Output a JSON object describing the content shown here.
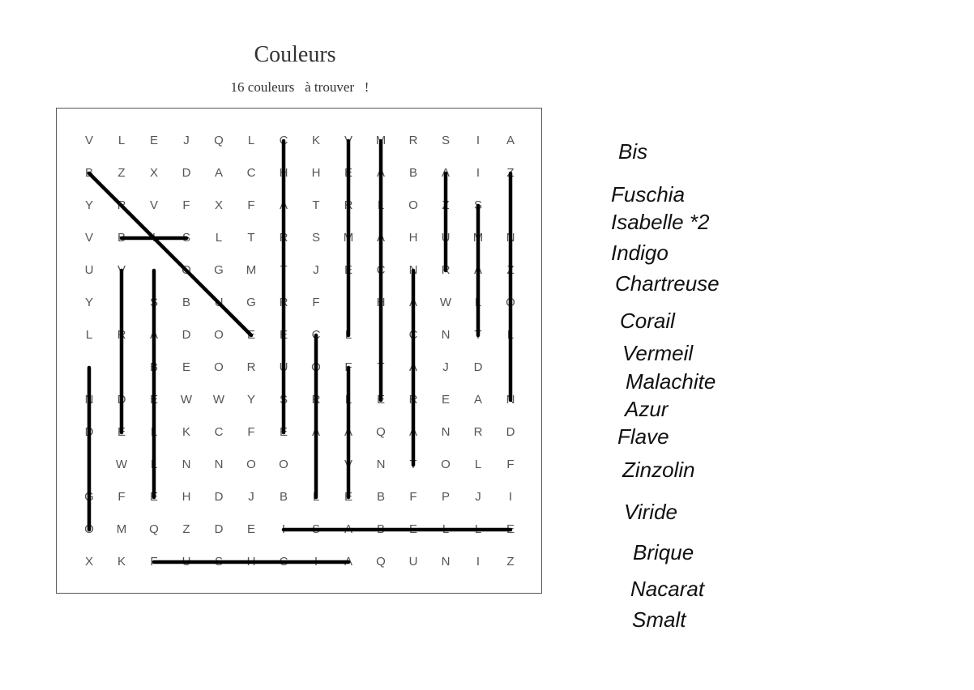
{
  "title": "Couleurs",
  "subtitle": "16 couleurs   à trouver   !",
  "grid": [
    [
      "V",
      "L",
      "E",
      "J",
      "Q",
      "L",
      "C",
      "K",
      "V",
      "M",
      "R",
      "S",
      "I",
      "A"
    ],
    [
      "B",
      "Z",
      "X",
      "D",
      "A",
      "C",
      "H",
      "H",
      "E",
      "A",
      "B",
      "A",
      "I",
      "Z"
    ],
    [
      "Y",
      "R",
      "V",
      "F",
      "X",
      "F",
      "A",
      "T",
      "R",
      "L",
      "O",
      "Z",
      "S",
      ""
    ],
    [
      "V",
      "B",
      "I",
      "S",
      "L",
      "T",
      "R",
      "S",
      "M",
      "A",
      "H",
      "U",
      "M",
      "N"
    ],
    [
      "U",
      "V",
      "",
      "O",
      "G",
      "M",
      "T",
      "J",
      "E",
      "C",
      "N",
      "R",
      "A",
      "Z"
    ],
    [
      "Y",
      "",
      "S",
      "B",
      "U",
      "G",
      "R",
      "F",
      "",
      "H",
      "A",
      "W",
      "L",
      "O"
    ],
    [
      "L",
      "R",
      "A",
      "D",
      "O",
      "E",
      "E",
      "C",
      "L",
      "",
      "C",
      "N",
      "T",
      "L"
    ],
    [
      "",
      "",
      "B",
      "E",
      "O",
      "R",
      "U",
      "O",
      "F",
      "T",
      "A",
      "J",
      "D",
      ""
    ],
    [
      "N",
      "D",
      "E",
      "W",
      "W",
      "Y",
      "S",
      "R",
      "L",
      "E",
      "R",
      "E",
      "A",
      "N"
    ],
    [
      "D",
      "E",
      "L",
      "K",
      "C",
      "F",
      "E",
      "A",
      "A",
      "Q",
      "A",
      "N",
      "R",
      "D"
    ],
    [
      "",
      "W",
      "L",
      "N",
      "N",
      "O",
      "O",
      "I",
      "V",
      "N",
      "T",
      "O",
      "L",
      "F"
    ],
    [
      "G",
      "F",
      "E",
      "H",
      "D",
      "J",
      "B",
      "L",
      "E",
      "B",
      "F",
      "P",
      "J",
      "I"
    ],
    [
      "O",
      "M",
      "Q",
      "Z",
      "D",
      "E",
      "I",
      "S",
      "A",
      "B",
      "E",
      "L",
      "L",
      "E"
    ],
    [
      "X",
      "K",
      "F",
      "U",
      "S",
      "H",
      "C",
      "I",
      "A",
      "Q",
      "U",
      "N",
      "I",
      "Z"
    ]
  ],
  "found_words": [
    {
      "word": "Isabelle",
      "from": [
        12,
        6
      ],
      "to": [
        12,
        13
      ]
    },
    {
      "word": "Fuschia",
      "from": [
        13,
        2
      ],
      "to": [
        13,
        8
      ]
    },
    {
      "word": "Bis",
      "from": [
        3,
        1
      ],
      "to": [
        3,
        3
      ]
    },
    {
      "word": "Bis",
      "from": [
        1,
        0
      ],
      "to": [
        6,
        5
      ]
    },
    {
      "word": "Nacarat",
      "from": [
        1,
        13
      ],
      "to": [
        8,
        13
      ]
    },
    {
      "word": "Chartreuse",
      "from": [
        0,
        6
      ],
      "to": [
        9,
        6
      ]
    },
    {
      "word": "Vermeil",
      "from": [
        0,
        8
      ],
      "to": [
        6,
        8
      ]
    },
    {
      "word": "Malachite",
      "from": [
        0,
        9
      ],
      "to": [
        8,
        9
      ]
    },
    {
      "word": "Azur",
      "from": [
        1,
        11
      ],
      "to": [
        4,
        11
      ]
    },
    {
      "word": "Smalt",
      "from": [
        2,
        12
      ],
      "to": [
        6,
        12
      ]
    },
    {
      "word": "Viride",
      "from": [
        4,
        1
      ],
      "to": [
        9,
        1
      ]
    },
    {
      "word": "Indigo",
      "from": [
        4,
        2
      ],
      "to": [
        11,
        2
      ]
    },
    {
      "word": "Corail",
      "from": [
        6,
        7
      ],
      "to": [
        11,
        7
      ]
    },
    {
      "word": "Flave",
      "from": [
        7,
        8
      ],
      "to": [
        11,
        8
      ]
    },
    {
      "word": "Nacarat",
      "from": [
        4,
        10
      ],
      "to": [
        10,
        10
      ]
    },
    {
      "word": "Zinzolin",
      "from": [
        7,
        0
      ],
      "to": [
        12,
        0
      ]
    }
  ],
  "word_list": [
    "Bis",
    "Fuschia",
    "Isabelle *2",
    "Indigo",
    "Chartreuse",
    "Corail",
    "Vermeil",
    "Malachite",
    "Azur",
    "Flave",
    "Zinzolin",
    "Viride",
    "Brique",
    "Nacarat",
    "Smalt"
  ]
}
